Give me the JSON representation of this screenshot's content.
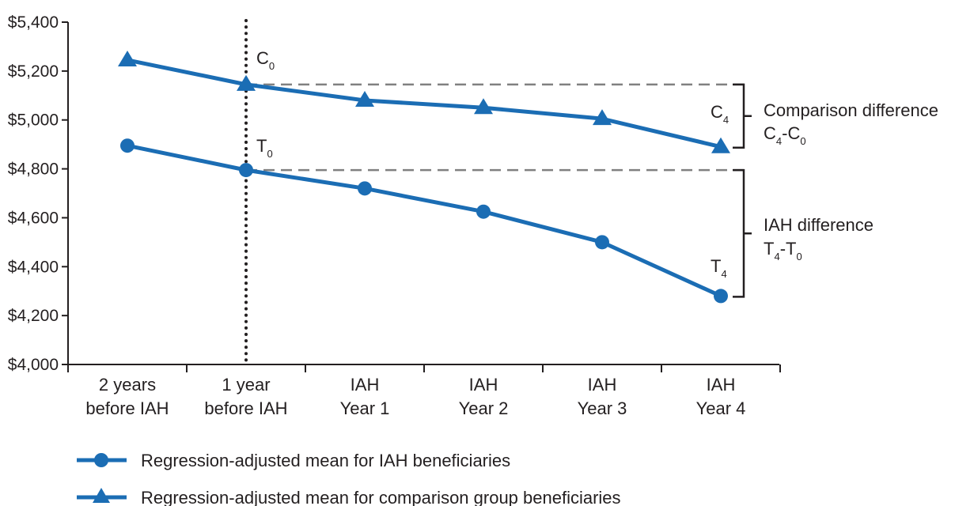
{
  "chart_data": {
    "type": "line",
    "categories": [
      [
        "2 years",
        "before IAH"
      ],
      [
        "1 year",
        "before IAH"
      ],
      [
        "IAH",
        "Year 1"
      ],
      [
        "IAH",
        "Year 2"
      ],
      [
        "IAH",
        "Year 3"
      ],
      [
        "IAH",
        "Year 4"
      ]
    ],
    "series": [
      {
        "name": "Regression-adjusted mean for IAH beneficiaries",
        "marker": "circle",
        "values": [
          4895,
          4795,
          4720,
          4625,
          4500,
          4280
        ]
      },
      {
        "name": "Regression-adjusted mean for comparison group beneficiaries",
        "marker": "triangle",
        "values": [
          5245,
          5145,
          5080,
          5050,
          5005,
          4890
        ]
      }
    ],
    "y_ticks": [
      "$4,000",
      "$4,200",
      "$4,400",
      "$4,600",
      "$4,800",
      "$5,000",
      "$5,200",
      "$5,400"
    ],
    "ylim": [
      4000,
      5400
    ],
    "y_tick_step": 200,
    "grid": false,
    "reference_line_category": 1,
    "color": "#1b6db4",
    "legend_placement": "bottom-left",
    "annotations": {
      "c0": {
        "main": "C",
        "sub": "0"
      },
      "t0": {
        "main": "T",
        "sub": "0"
      },
      "c4": {
        "main": "C",
        "sub": "4"
      },
      "t4": {
        "main": "T",
        "sub": "4"
      },
      "comparison_title": "Comparison difference",
      "comparison_formula": {
        "a": "C",
        "a_sub": "4",
        "dash": "-",
        "b": "C",
        "b_sub": "0"
      },
      "iah_title": "IAH difference",
      "iah_formula": {
        "a": "T",
        "a_sub": "4",
        "dash": "-",
        "b": "T",
        "b_sub": "0"
      }
    }
  }
}
